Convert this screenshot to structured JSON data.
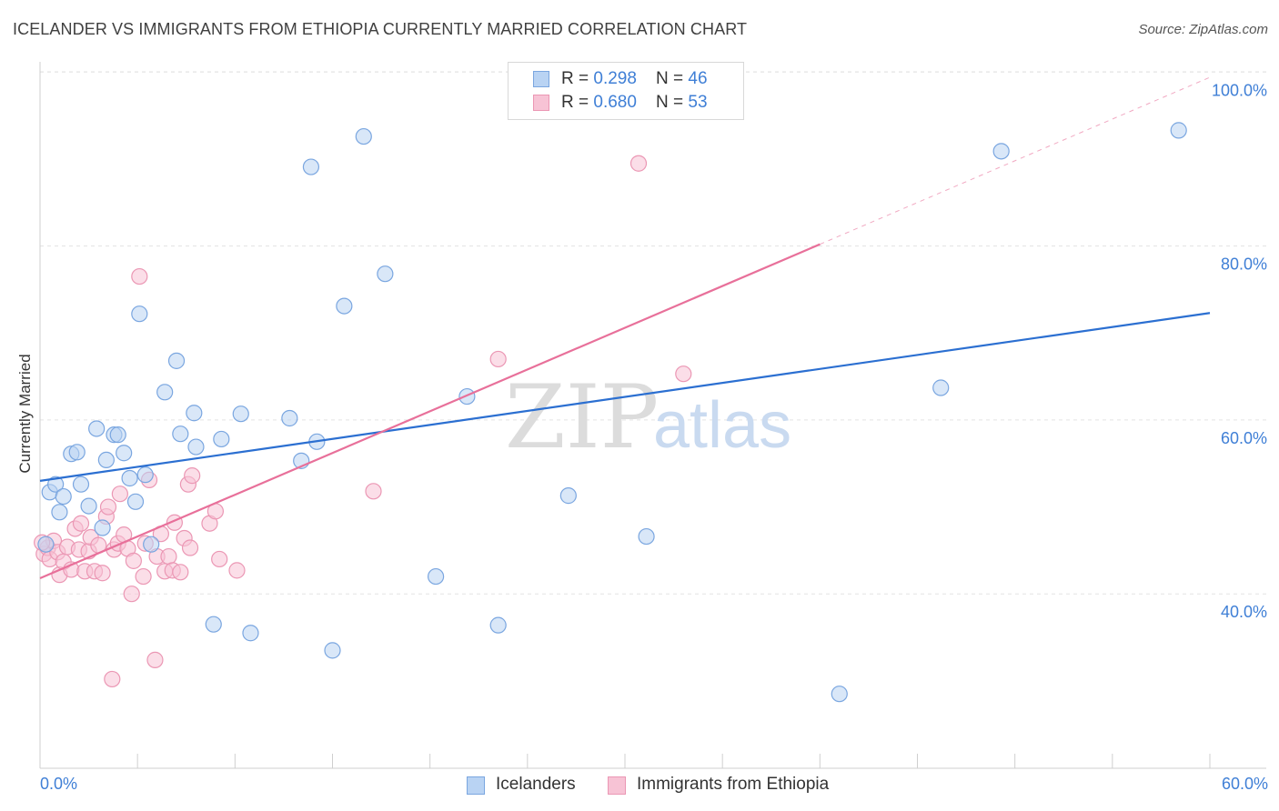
{
  "title": "ICELANDER VS IMMIGRANTS FROM ETHIOPIA CURRENTLY MARRIED CORRELATION CHART",
  "source": "Source: ZipAtlas.com",
  "watermark": {
    "zip": "ZIP",
    "atlas": "atlas"
  },
  "colors": {
    "blue": "#2b6fd1",
    "blue_fill": "#b9d3f3",
    "pink": "#e8709a",
    "pink_fill": "#f7c3d5",
    "grid": "#e3e3e3",
    "label": "#3f7fd6"
  },
  "legend": {
    "rows": [
      {
        "r_label": "R = ",
        "r_value": "0.298",
        "n_label": "N = ",
        "n_value": "46"
      },
      {
        "r_label": "R = ",
        "r_value": "0.680",
        "n_label": "N = ",
        "n_value": "53"
      }
    ]
  },
  "bottom_legend": [
    "Icelanders",
    "Immigrants from Ethiopia"
  ],
  "x_axis_labels": {
    "min": "0.0%",
    "max": "60.0%"
  },
  "chart_data": {
    "type": "scatter",
    "title": "ICELANDER VS IMMIGRANTS FROM ETHIOPIA CURRENTLY MARRIED CORRELATION CHART",
    "xlabel": "",
    "ylabel": "Currently Married",
    "xlim": [
      0,
      60
    ],
    "ylim": [
      20,
      102
    ],
    "y_ticks": [
      40,
      60,
      80,
      100
    ],
    "y_tick_labels": [
      "40.0%",
      "60.0%",
      "80.0%",
      "100.0%"
    ],
    "series": [
      {
        "name": "Icelanders",
        "color": "#2b6fd1",
        "trend": {
          "x": [
            0,
            60
          ],
          "y": [
            53.0,
            72.3
          ],
          "dashed_to": null
        },
        "points": [
          [
            0.3,
            45.7
          ],
          [
            0.5,
            51.7
          ],
          [
            0.8,
            52.6
          ],
          [
            1.0,
            49.4
          ],
          [
            1.2,
            51.2
          ],
          [
            1.6,
            56.1
          ],
          [
            1.9,
            56.3
          ],
          [
            2.1,
            52.6
          ],
          [
            2.5,
            50.1
          ],
          [
            2.9,
            59.0
          ],
          [
            3.2,
            47.6
          ],
          [
            3.4,
            55.4
          ],
          [
            3.8,
            58.3
          ],
          [
            4.0,
            58.3
          ],
          [
            4.3,
            56.2
          ],
          [
            4.6,
            53.3
          ],
          [
            4.9,
            50.6
          ],
          [
            5.1,
            72.2
          ],
          [
            5.4,
            53.7
          ],
          [
            5.7,
            45.7
          ],
          [
            6.4,
            63.2
          ],
          [
            7.0,
            66.8
          ],
          [
            7.2,
            58.4
          ],
          [
            7.9,
            60.8
          ],
          [
            8.0,
            56.9
          ],
          [
            8.9,
            36.5
          ],
          [
            9.3,
            57.8
          ],
          [
            10.3,
            60.7
          ],
          [
            10.8,
            35.5
          ],
          [
            12.8,
            60.2
          ],
          [
            13.4,
            55.3
          ],
          [
            13.9,
            89.1
          ],
          [
            14.2,
            57.5
          ],
          [
            15.0,
            33.5
          ],
          [
            15.6,
            73.1
          ],
          [
            16.6,
            92.6
          ],
          [
            17.7,
            76.8
          ],
          [
            20.3,
            42.0
          ],
          [
            21.9,
            62.7
          ],
          [
            23.5,
            36.4
          ],
          [
            27.1,
            51.3
          ],
          [
            31.1,
            46.6
          ],
          [
            41.0,
            28.5
          ],
          [
            46.2,
            63.7
          ],
          [
            49.3,
            90.9
          ],
          [
            58.4,
            93.3
          ]
        ]
      },
      {
        "name": "Immigrants from Ethiopia",
        "color": "#e8709a",
        "trend": {
          "x": [
            0,
            40
          ],
          "y": [
            41.8,
            80.2
          ],
          "dashed_to": [
            60,
            99.4
          ]
        },
        "points": [
          [
            0.2,
            44.6
          ],
          [
            0.4,
            45.3
          ],
          [
            0.5,
            44.0
          ],
          [
            0.7,
            46.1
          ],
          [
            0.9,
            44.8
          ],
          [
            1.0,
            42.2
          ],
          [
            1.2,
            43.7
          ],
          [
            1.4,
            45.4
          ],
          [
            1.6,
            42.8
          ],
          [
            1.8,
            47.5
          ],
          [
            2.0,
            45.1
          ],
          [
            2.1,
            48.1
          ],
          [
            2.3,
            42.6
          ],
          [
            2.5,
            44.9
          ],
          [
            2.6,
            46.5
          ],
          [
            2.8,
            42.6
          ],
          [
            3.0,
            45.6
          ],
          [
            3.2,
            42.4
          ],
          [
            3.4,
            48.9
          ],
          [
            3.5,
            50.0
          ],
          [
            3.7,
            30.2
          ],
          [
            3.8,
            45.1
          ],
          [
            4.0,
            45.8
          ],
          [
            4.1,
            51.5
          ],
          [
            4.3,
            46.8
          ],
          [
            4.5,
            45.2
          ],
          [
            4.7,
            40.0
          ],
          [
            4.8,
            43.8
          ],
          [
            5.1,
            76.5
          ],
          [
            5.3,
            42.0
          ],
          [
            5.4,
            45.8
          ],
          [
            5.6,
            53.1
          ],
          [
            5.9,
            32.4
          ],
          [
            6.0,
            44.3
          ],
          [
            6.2,
            46.9
          ],
          [
            6.4,
            42.6
          ],
          [
            6.6,
            44.3
          ],
          [
            6.8,
            42.7
          ],
          [
            6.9,
            48.2
          ],
          [
            7.2,
            42.5
          ],
          [
            7.4,
            46.4
          ],
          [
            7.6,
            52.6
          ],
          [
            7.7,
            45.3
          ],
          [
            7.8,
            53.6
          ],
          [
            8.7,
            48.1
          ],
          [
            9.0,
            49.5
          ],
          [
            9.2,
            44.0
          ],
          [
            10.1,
            42.7
          ],
          [
            17.1,
            51.8
          ],
          [
            23.5,
            67.0
          ],
          [
            30.7,
            89.5
          ],
          [
            33.0,
            65.3
          ],
          [
            0.1,
            45.9
          ]
        ]
      }
    ]
  }
}
